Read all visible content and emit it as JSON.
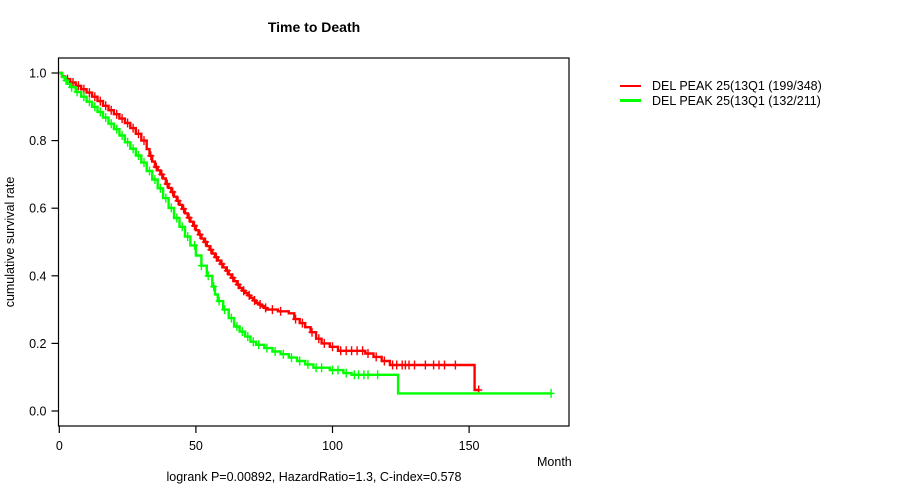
{
  "figure": {
    "title": "Time to Death",
    "footnote": "logrank P=0.00892, HazardRatio=1.3, C-index=0.578"
  },
  "axes": {
    "x": {
      "label": "Month",
      "range": [
        0,
        186.5
      ],
      "ticks": [
        {
          "value": 0,
          "label": "0"
        },
        {
          "value": 50,
          "label": "50"
        },
        {
          "value": 100,
          "label": "100"
        },
        {
          "value": 150,
          "label": "150"
        }
      ]
    },
    "y": {
      "label": "cumulative survival rate",
      "range": [
        0,
        1.0
      ],
      "ticks": [
        {
          "value": 1.0,
          "label": "1.0"
        },
        {
          "value": 0.8,
          "label": "0.8"
        },
        {
          "value": 0.6,
          "label": "0.6"
        },
        {
          "value": 0.4,
          "label": "0.4"
        },
        {
          "value": 0.2,
          "label": "0.2"
        },
        {
          "value": 0.0,
          "label": "0.0"
        }
      ]
    }
  },
  "legend": {
    "items": [
      {
        "label": "DEL PEAK 25(13Q1 (199/348)",
        "color": "#ff0000"
      },
      {
        "label": "DEL PEAK 25(13Q1 (132/211)",
        "color": "#00ff00"
      }
    ]
  },
  "chart_data": {
    "type": "line",
    "subtype": "kaplan-meier-step-survival",
    "title": "Time to Death",
    "xlabel": "Month",
    "ylabel": "cumulative survival rate",
    "xlim": [
      0,
      186.5
    ],
    "ylim": [
      0,
      1.0
    ],
    "x_ticks": [
      0,
      50,
      100,
      150
    ],
    "y_ticks": [
      0.0,
      0.2,
      0.4,
      0.6,
      0.8,
      1.0
    ],
    "grid": false,
    "legend_position": "right-outside",
    "annotation": "logrank P=0.00892, HazardRatio=1.3, C-index=0.578",
    "series": [
      {
        "name": "DEL PEAK 25(13Q1 (199/348)",
        "color": "#ff0000",
        "steps": [
          [
            0,
            1.0
          ],
          [
            1,
            0.99
          ],
          [
            2,
            0.982
          ],
          [
            4,
            0.972
          ],
          [
            6,
            0.962
          ],
          [
            8,
            0.952
          ],
          [
            10,
            0.942
          ],
          [
            12,
            0.93
          ],
          [
            14,
            0.917
          ],
          [
            16,
            0.903
          ],
          [
            18,
            0.89
          ],
          [
            20,
            0.878
          ],
          [
            22,
            0.865
          ],
          [
            24,
            0.852
          ],
          [
            26,
            0.837
          ],
          [
            28,
            0.82
          ],
          [
            30,
            0.8
          ],
          [
            32,
            0.775
          ],
          [
            33,
            0.755
          ],
          [
            34,
            0.738
          ],
          [
            35,
            0.722
          ],
          [
            36,
            0.712
          ],
          [
            37,
            0.7
          ],
          [
            38,
            0.688
          ],
          [
            39,
            0.672
          ],
          [
            40,
            0.66
          ],
          [
            41,
            0.648
          ],
          [
            42,
            0.634
          ],
          [
            43,
            0.622
          ],
          [
            44,
            0.61
          ],
          [
            45,
            0.598
          ],
          [
            46,
            0.585
          ],
          [
            47,
            0.572
          ],
          [
            48,
            0.56
          ],
          [
            49,
            0.548
          ],
          [
            50,
            0.535
          ],
          [
            51,
            0.522
          ],
          [
            52,
            0.51
          ],
          [
            53,
            0.5
          ],
          [
            54,
            0.488
          ],
          [
            55,
            0.477
          ],
          [
            56,
            0.466
          ],
          [
            57,
            0.455
          ],
          [
            58,
            0.445
          ],
          [
            59,
            0.435
          ],
          [
            60,
            0.425
          ],
          [
            61,
            0.415
          ],
          [
            62,
            0.404
          ],
          [
            63,
            0.394
          ],
          [
            64,
            0.384
          ],
          [
            65,
            0.374
          ],
          [
            66,
            0.364
          ],
          [
            67,
            0.356
          ],
          [
            68,
            0.349
          ],
          [
            69,
            0.342
          ],
          [
            70,
            0.335
          ],
          [
            71,
            0.327
          ],
          [
            72,
            0.32
          ],
          [
            73,
            0.315
          ],
          [
            74,
            0.31
          ],
          [
            75,
            0.305
          ],
          [
            76,
            0.3
          ],
          [
            80,
            0.295
          ],
          [
            84,
            0.289
          ],
          [
            86,
            0.272
          ],
          [
            88,
            0.26
          ],
          [
            90,
            0.248
          ],
          [
            92,
            0.233
          ],
          [
            94,
            0.214
          ],
          [
            96,
            0.2
          ],
          [
            99,
            0.19
          ],
          [
            102,
            0.178
          ],
          [
            112,
            0.17
          ],
          [
            115,
            0.16
          ],
          [
            118,
            0.148
          ],
          [
            121,
            0.136
          ],
          [
            152,
            0.062
          ],
          [
            153.5,
            0.062
          ]
        ],
        "censor_months": [
          3,
          5,
          7,
          9,
          11,
          13,
          15,
          17,
          19,
          21,
          23,
          25,
          27,
          29,
          31,
          33.5,
          35.5,
          37.5,
          39.5,
          41.5,
          43.5,
          45.5,
          47.5,
          49.5,
          51.5,
          53.5,
          55.5,
          57.5,
          59.5,
          61.5,
          63.5,
          65.5,
          67.5,
          69.5,
          71.5,
          73.5,
          75.5,
          78,
          81,
          86.5,
          89,
          92.5,
          95,
          97,
          100,
          103,
          105,
          107,
          109,
          111,
          113,
          116,
          119,
          122,
          123.5,
          125.5,
          126.7,
          128,
          130,
          134,
          137,
          139,
          141,
          145,
          153.5
        ]
      },
      {
        "name": "DEL PEAK 25(13Q1 (132/211)",
        "color": "#00ff00",
        "steps": [
          [
            0,
            1.0
          ],
          [
            1,
            0.988
          ],
          [
            2,
            0.978
          ],
          [
            3,
            0.968
          ],
          [
            4,
            0.958
          ],
          [
            6,
            0.944
          ],
          [
            8,
            0.93
          ],
          [
            10,
            0.915
          ],
          [
            12,
            0.9
          ],
          [
            14,
            0.885
          ],
          [
            16,
            0.868
          ],
          [
            18,
            0.85
          ],
          [
            20,
            0.834
          ],
          [
            22,
            0.815
          ],
          [
            24,
            0.795
          ],
          [
            26,
            0.776
          ],
          [
            28,
            0.756
          ],
          [
            30,
            0.735
          ],
          [
            32,
            0.71
          ],
          [
            34,
            0.685
          ],
          [
            36,
            0.659
          ],
          [
            38,
            0.63
          ],
          [
            40,
            0.601
          ],
          [
            42,
            0.571
          ],
          [
            44,
            0.545
          ],
          [
            46,
            0.516
          ],
          [
            48,
            0.49
          ],
          [
            50,
            0.46
          ],
          [
            52,
            0.43
          ],
          [
            54,
            0.4
          ],
          [
            56,
            0.368
          ],
          [
            57,
            0.345
          ],
          [
            58,
            0.325
          ],
          [
            60,
            0.3
          ],
          [
            62,
            0.275
          ],
          [
            64,
            0.25
          ],
          [
            66,
            0.235
          ],
          [
            68,
            0.22
          ],
          [
            70,
            0.205
          ],
          [
            72,
            0.196
          ],
          [
            75,
            0.186
          ],
          [
            78,
            0.176
          ],
          [
            81,
            0.168
          ],
          [
            84,
            0.158
          ],
          [
            87,
            0.148
          ],
          [
            90,
            0.138
          ],
          [
            93,
            0.128
          ],
          [
            99,
            0.121
          ],
          [
            104,
            0.112
          ],
          [
            107,
            0.107
          ],
          [
            124,
            0.052
          ],
          [
            180,
            0.052
          ]
        ],
        "censor_months": [
          2.5,
          4.5,
          6.5,
          9,
          11,
          13,
          15,
          17,
          19,
          21,
          23,
          25,
          27,
          29,
          31,
          33,
          35,
          37,
          39,
          41,
          43,
          45,
          47,
          49.5,
          52,
          54.5,
          56.5,
          58.5,
          60.5,
          63,
          65,
          67,
          69,
          71,
          73,
          76,
          79,
          82,
          85,
          88,
          91,
          94,
          96,
          100,
          102,
          105,
          108,
          109.5,
          111.5,
          113,
          116.5,
          180
        ]
      }
    ]
  }
}
